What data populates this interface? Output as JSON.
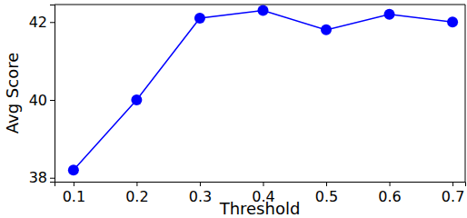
{
  "chart_data": {
    "type": "line",
    "x": [
      0.1,
      0.2,
      0.3,
      0.4,
      0.5,
      0.6,
      0.7
    ],
    "values": [
      38.2,
      40.0,
      42.1,
      42.3,
      41.8,
      42.2,
      42.0
    ],
    "color": "#0000ff",
    "marker": "circle",
    "line_style": "solid",
    "x_label": "Threshold",
    "y_label": "Avg Score",
    "xlim": [
      0.07,
      0.72
    ],
    "xticks": [
      0.1,
      0.2,
      0.3,
      0.4,
      0.5,
      0.6,
      0.7
    ],
    "ylim": [
      37.9,
      42.45
    ],
    "yticks": [
      38,
      40,
      42
    ],
    "grid": false
  }
}
